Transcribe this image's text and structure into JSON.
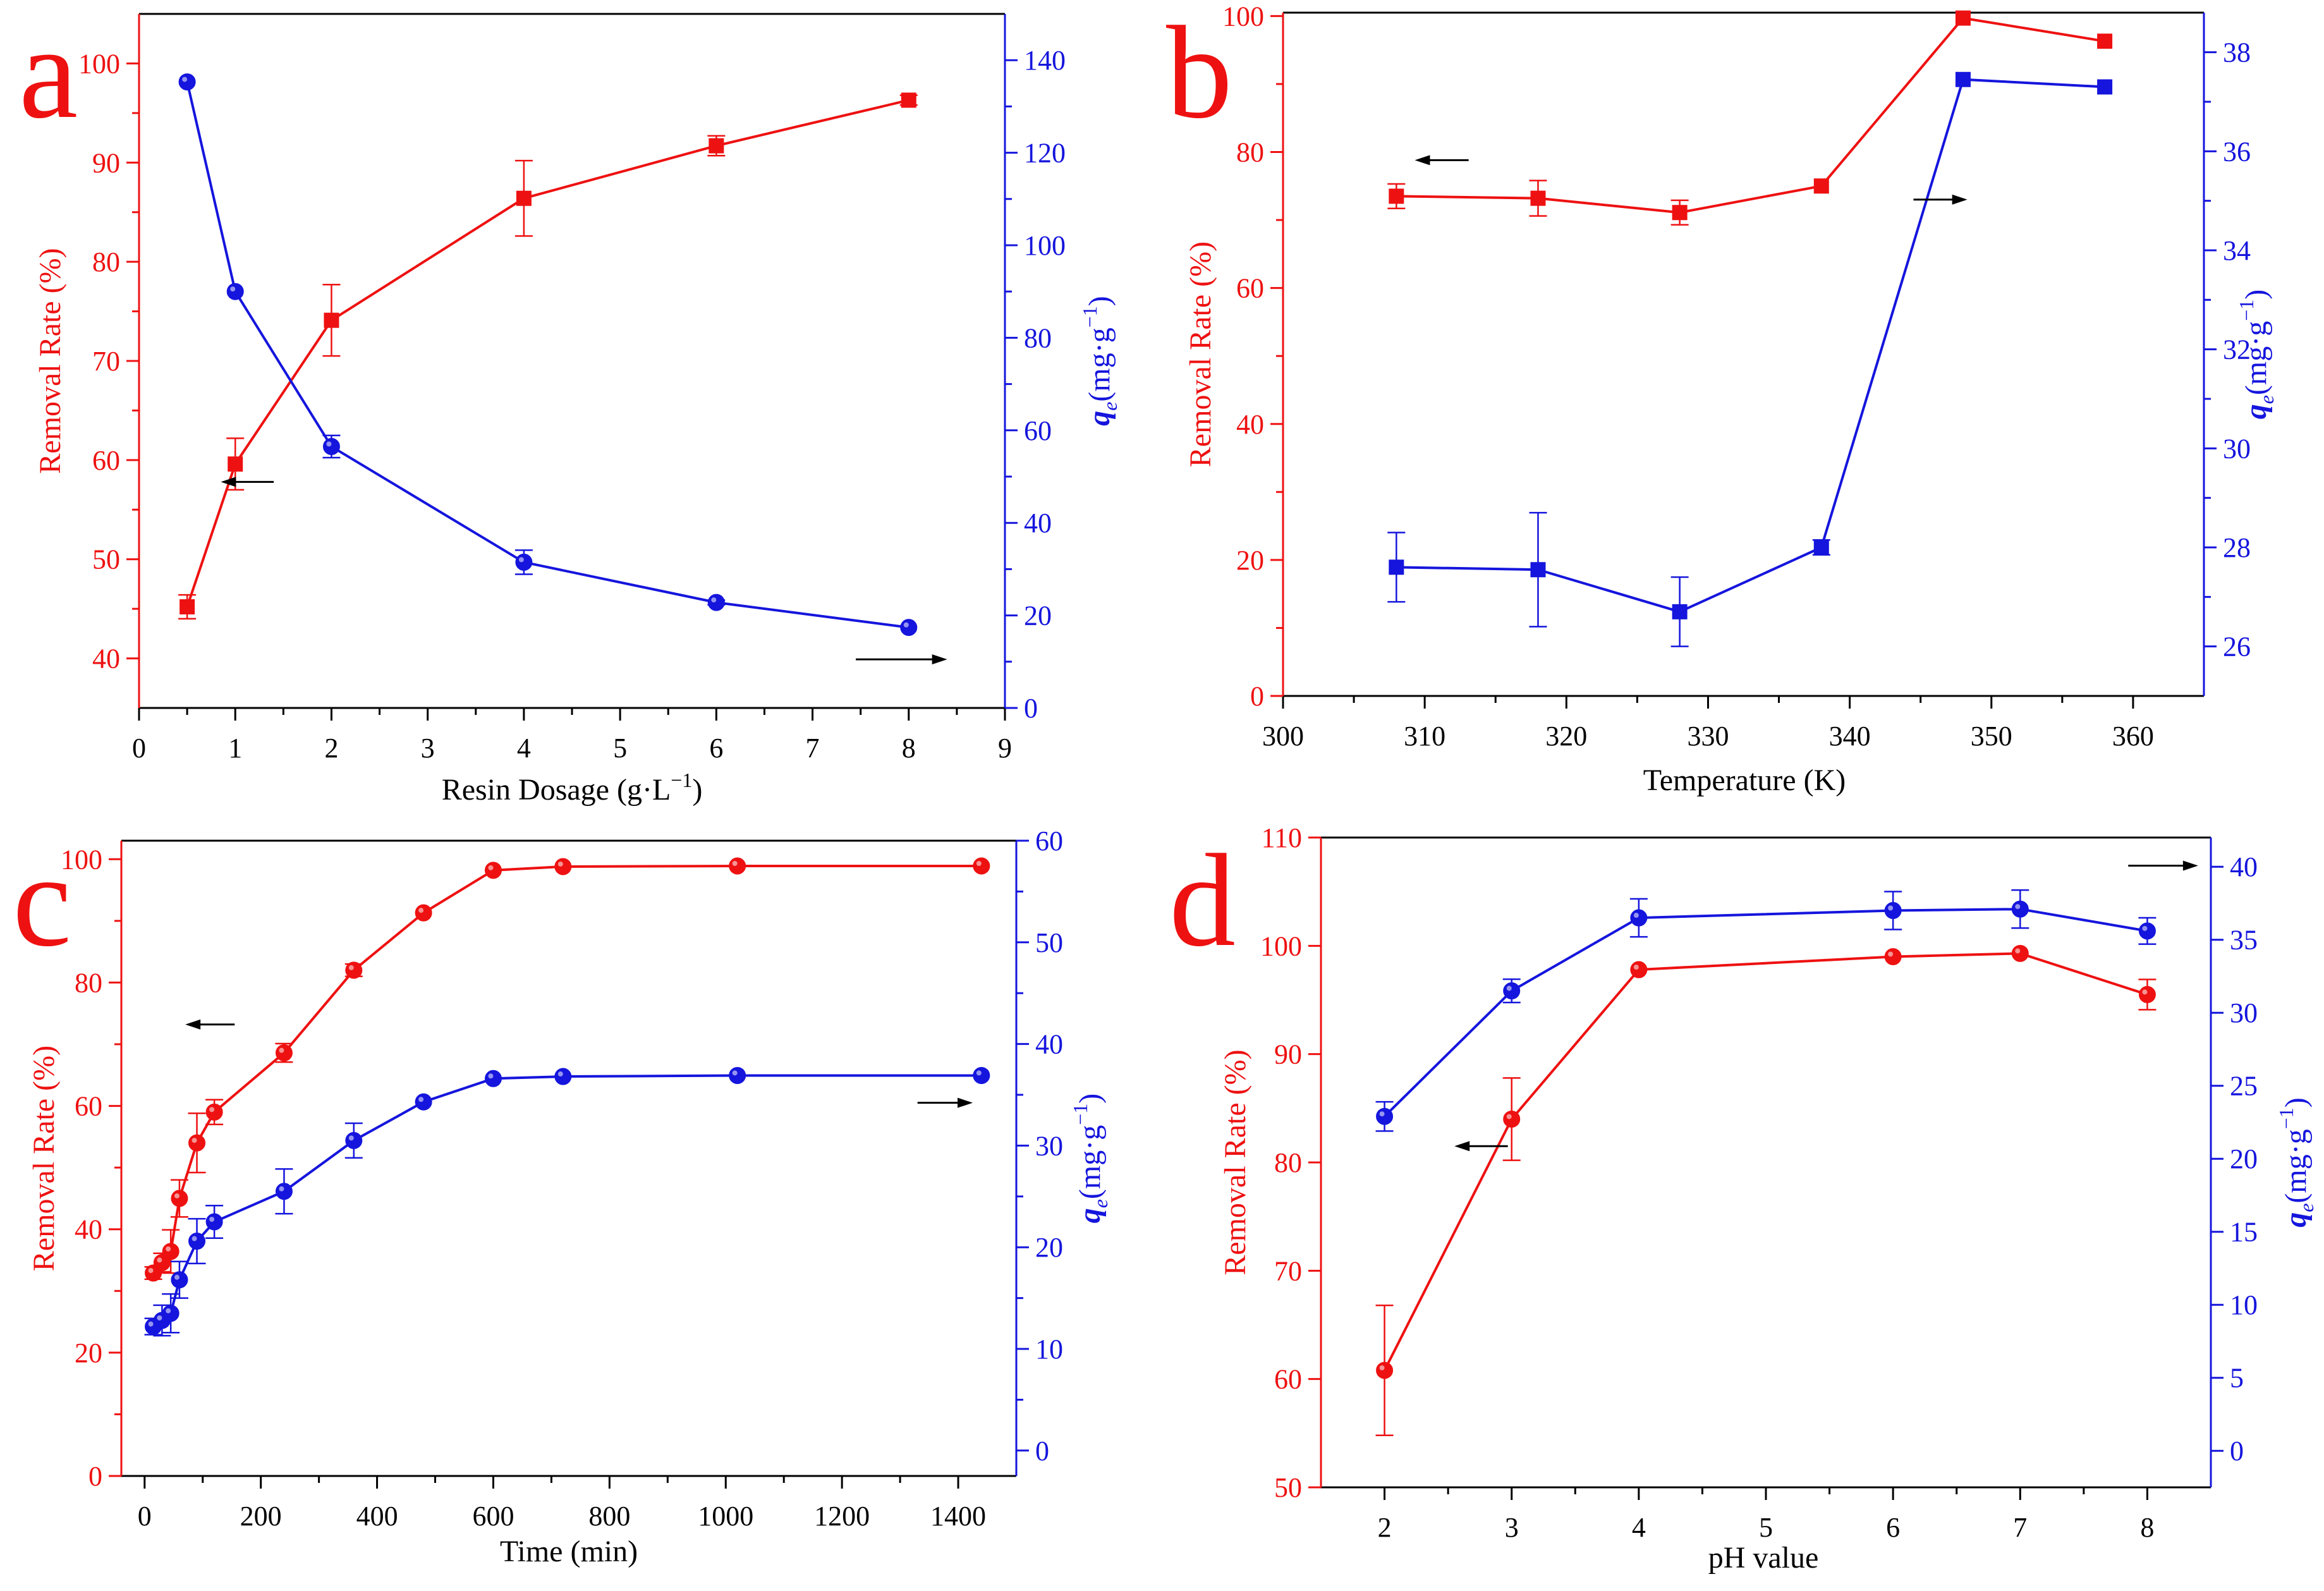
{
  "colors": {
    "red": "#ee1111",
    "blue": "#1515dd",
    "black": "#000000"
  },
  "chart_data": [
    {
      "panel": "a",
      "type": "line",
      "xlabel": "Resin Dosage (g·L",
      "xlabel_sup": "−1",
      "xlabel_tail": ")",
      "ylabel_left": "Removal  Rate (%)",
      "ylabel_right_main": "q",
      "ylabel_right_sub": "e",
      "ylabel_right_unit": "(mg·g",
      "ylabel_right_sup": "−1",
      "ylabel_right_tail": ")",
      "xlim": [
        0,
        9
      ],
      "ylim_left": [
        35,
        105
      ],
      "ylim_right": [
        0,
        150
      ],
      "xticks": [
        0,
        1,
        2,
        3,
        4,
        5,
        6,
        7,
        8,
        9
      ],
      "yticks_left": [
        40,
        50,
        60,
        70,
        80,
        90,
        100
      ],
      "yticks_right": [
        0,
        20,
        40,
        60,
        80,
        100,
        120,
        140
      ],
      "series": [
        {
          "name": "Removal Rate",
          "axis": "left",
          "color": "red",
          "marker": "square",
          "x": [
            0.5,
            1,
            2,
            4,
            6,
            8
          ],
          "y": [
            45.2,
            59.6,
            74.1,
            86.4,
            91.7,
            96.3
          ],
          "err": [
            1.2,
            2.6,
            3.6,
            3.8,
            1.0,
            0.5
          ]
        },
        {
          "name": "qe",
          "axis": "right",
          "color": "blue",
          "marker": "circle",
          "x": [
            0.5,
            1,
            2,
            4,
            6,
            8
          ],
          "y": [
            135.3,
            90.0,
            56.5,
            31.5,
            22.8,
            17.4
          ],
          "err": [
            0,
            0,
            2.4,
            2.6,
            0.5,
            0
          ]
        }
      ],
      "arrows": [
        {
          "direction": "left",
          "x": 0.85,
          "y_left": 57.8,
          "length": 0.55
        },
        {
          "direction": "right",
          "x": 7.45,
          "y_left": 39.9,
          "length": 0.95
        }
      ]
    },
    {
      "panel": "b",
      "type": "line",
      "xlabel": "Temperature (K)",
      "ylabel_left": "Removal  Rate (%)",
      "ylabel_right_main": "q",
      "ylabel_right_sub": "e",
      "ylabel_right_unit": "(mg·g",
      "ylabel_right_sup": "−1",
      "ylabel_right_tail": ")",
      "xlim": [
        300,
        365
      ],
      "ylim_left": [
        0,
        100.5
      ],
      "ylim_right": [
        25,
        38.8
      ],
      "xticks": [
        300,
        310,
        320,
        330,
        340,
        350,
        360
      ],
      "yticks_left": [
        0,
        20,
        40,
        60,
        80,
        100
      ],
      "yticks_right": [
        26,
        28,
        30,
        32,
        34,
        36,
        38
      ],
      "series": [
        {
          "name": "Removal Rate",
          "axis": "left",
          "color": "red",
          "marker": "square",
          "x": [
            308,
            318,
            328,
            338,
            348,
            358
          ],
          "y": [
            73.5,
            73.2,
            71.1,
            75.0,
            99.7,
            96.3
          ],
          "err": [
            1.8,
            2.6,
            1.8,
            0,
            0,
            0
          ]
        },
        {
          "name": "qe",
          "axis": "right",
          "color": "blue",
          "marker": "square",
          "x": [
            308,
            318,
            328,
            338,
            348,
            358
          ],
          "y": [
            27.6,
            27.55,
            26.7,
            28.0,
            37.45,
            37.3
          ],
          "err": [
            0.7,
            1.15,
            0.7,
            0.15,
            0,
            0
          ]
        }
      ],
      "arrows": [
        {
          "direction": "left",
          "x": 309.3,
          "y_left": 78.8,
          "length": 3.8
        },
        {
          "direction": "right",
          "x": 344.5,
          "y_left": 73.0,
          "length": 3.8
        }
      ]
    },
    {
      "panel": "c",
      "type": "line",
      "xlabel": "Time (min)",
      "ylabel_left": "Removal Rate (%)",
      "ylabel_right_main": "q",
      "ylabel_right_sub": "e",
      "ylabel_right_unit": "(mg·g",
      "ylabel_right_sup": "−1",
      "ylabel_right_tail": ")",
      "xlim": [
        -40,
        1500
      ],
      "ylim_left": [
        0,
        103
      ],
      "ylim_right": [
        -2.5,
        60
      ],
      "xticks": [
        0,
        200,
        400,
        600,
        800,
        1000,
        1200,
        1400
      ],
      "yticks_left": [
        0,
        20,
        40,
        60,
        80,
        100
      ],
      "yticks_right": [
        0,
        10,
        20,
        30,
        40,
        50,
        60
      ],
      "series": [
        {
          "name": "Removal Rate",
          "axis": "left",
          "color": "red",
          "marker": "circle",
          "x": [
            15,
            30,
            45,
            60,
            90,
            120,
            240,
            360,
            480,
            600,
            720,
            1020,
            1440
          ],
          "y": [
            32.9,
            34.6,
            36.4,
            45.0,
            54.0,
            59.0,
            68.6,
            82.0,
            91.3,
            98.2,
            98.8,
            98.9,
            98.9
          ],
          "err": [
            1.0,
            1.5,
            3.5,
            3.0,
            4.8,
            2.0,
            1.5,
            1.0,
            0,
            0,
            0,
            0,
            0
          ]
        },
        {
          "name": "qe",
          "axis": "right",
          "color": "blue",
          "marker": "circle",
          "x": [
            15,
            30,
            45,
            60,
            90,
            120,
            240,
            360,
            480,
            600,
            720,
            1020,
            1440
          ],
          "y": [
            12.2,
            12.8,
            13.5,
            16.8,
            20.6,
            22.5,
            25.5,
            30.5,
            34.3,
            36.6,
            36.8,
            36.9,
            36.9
          ],
          "err": [
            0.8,
            1.5,
            1.9,
            1.8,
            2.2,
            1.6,
            2.2,
            1.7,
            0,
            0,
            0,
            0,
            0
          ]
        }
      ],
      "arrows": [
        {
          "direction": "left",
          "x": 70,
          "y_left": 73.2,
          "length": 85
        },
        {
          "direction": "right",
          "x": 1330,
          "y_left": 60.5,
          "length": 95
        }
      ]
    },
    {
      "panel": "d",
      "type": "line",
      "xlabel": "pH value",
      "ylabel_left": "Removal Rate (%)",
      "ylabel_right_main": "q",
      "ylabel_right_sub": "e",
      "ylabel_right_unit": "(mg·g",
      "ylabel_right_sup": "−1",
      "ylabel_right_tail": ")",
      "xlim": [
        1.5,
        8.5
      ],
      "ylim_left": [
        50,
        110
      ],
      "ylim_right": [
        -2.5,
        42
      ],
      "xticks": [
        2,
        3,
        4,
        5,
        6,
        7,
        8
      ],
      "yticks_left": [
        50,
        60,
        70,
        80,
        90,
        100,
        110
      ],
      "yticks_right": [
        0,
        5,
        10,
        15,
        20,
        25,
        30,
        35,
        40
      ],
      "series": [
        {
          "name": "Removal Rate",
          "axis": "left",
          "color": "red",
          "marker": "circle",
          "x": [
            2,
            3,
            4,
            6,
            7,
            8
          ],
          "y": [
            60.8,
            84.0,
            97.8,
            99.0,
            99.3,
            95.5
          ],
          "err": [
            6.0,
            3.8,
            0,
            0,
            0,
            1.4
          ]
        },
        {
          "name": "qe",
          "axis": "right",
          "color": "blue",
          "marker": "circle",
          "x": [
            2,
            3,
            4,
            6,
            7,
            8
          ],
          "y": [
            22.9,
            31.5,
            36.5,
            37.0,
            37.1,
            35.6
          ],
          "err": [
            1.0,
            0.8,
            1.3,
            1.3,
            1.3,
            0.9
          ]
        }
      ],
      "arrows": [
        {
          "direction": "left",
          "x": 2.55,
          "y_left": 81.5,
          "length": 0.42
        },
        {
          "direction": "right",
          "x": 7.85,
          "y_left": 107.4,
          "length": 0.55
        }
      ]
    }
  ],
  "panel_letters": [
    "a",
    "b",
    "c",
    "d"
  ]
}
